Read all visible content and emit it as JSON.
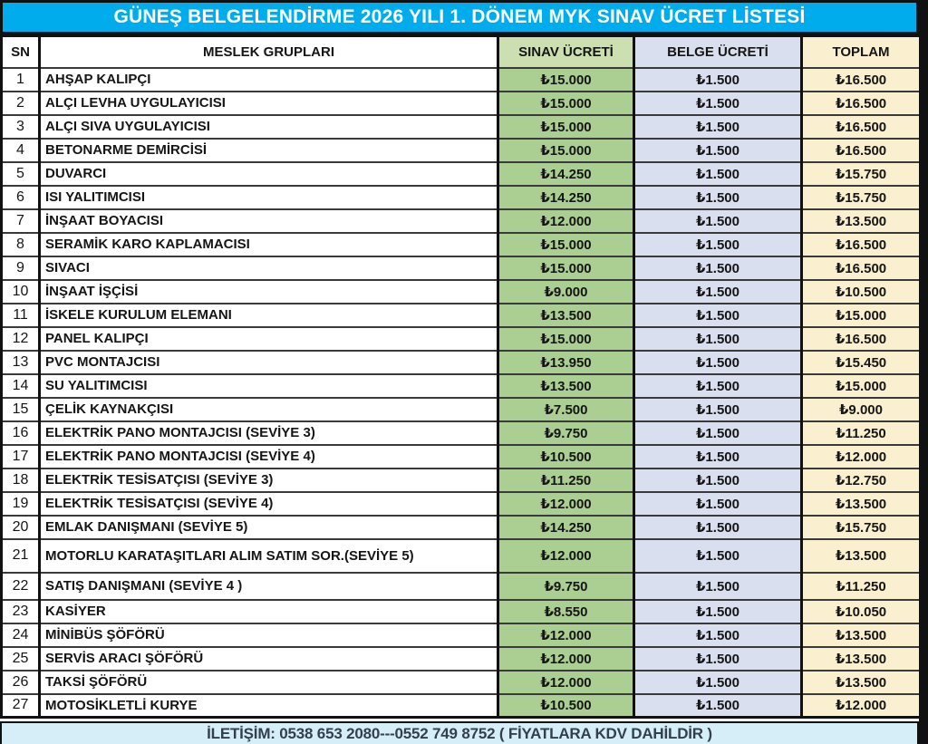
{
  "title": "GÜNEŞ BELGELENDİRME 2026 YILI 1. DÖNEM MYK SINAV ÜCRET LİSTESİ",
  "table": {
    "headers": [
      "SN",
      "MESLEK GRUPLARI",
      "SINAV ÜCRETİ",
      "BELGE ÜCRETİ",
      "TOPLAM"
    ],
    "rows": [
      [
        "1",
        "AHŞAP KALIPÇI",
        "₺15.000",
        "₺1.500",
        "₺16.500"
      ],
      [
        "2",
        "ALÇI LEVHA UYGULAYICISI",
        "₺15.000",
        "₺1.500",
        "₺16.500"
      ],
      [
        "3",
        "ALÇI SIVA UYGULAYICISI",
        "₺15.000",
        "₺1.500",
        "₺16.500"
      ],
      [
        "4",
        "BETONARME DEMİRCİSİ",
        "₺15.000",
        "₺1.500",
        "₺16.500"
      ],
      [
        "5",
        "DUVARCI",
        "₺14.250",
        "₺1.500",
        "₺15.750"
      ],
      [
        "6",
        "ISI YALITIMCISI",
        "₺14.250",
        "₺1.500",
        "₺15.750"
      ],
      [
        "7",
        "İNŞAAT BOYACISI",
        "₺12.000",
        "₺1.500",
        "₺13.500"
      ],
      [
        "8",
        "SERAMİK KARO KAPLAMACISI",
        "₺15.000",
        "₺1.500",
        "₺16.500"
      ],
      [
        "9",
        "SIVACI",
        "₺15.000",
        "₺1.500",
        "₺16.500"
      ],
      [
        "10",
        "İNŞAAT İŞÇİSİ",
        "₺9.000",
        "₺1.500",
        "₺10.500"
      ],
      [
        "11",
        "İSKELE KURULUM ELEMANI",
        "₺13.500",
        "₺1.500",
        "₺15.000"
      ],
      [
        "12",
        "PANEL KALIPÇI",
        "₺15.000",
        "₺1.500",
        "₺16.500"
      ],
      [
        "13",
        "PVC MONTAJCISI",
        "₺13.950",
        "₺1.500",
        "₺15.450"
      ],
      [
        "14",
        "SU YALITIMCISI",
        "₺13.500",
        "₺1.500",
        "₺15.000"
      ],
      [
        "15",
        "ÇELİK KAYNAKÇISI",
        "₺7.500",
        "₺1.500",
        "₺9.000"
      ],
      [
        "16",
        "ELEKTRİK PANO MONTAJCISI (SEVİYE 3)",
        "₺9.750",
        "₺1.500",
        "₺11.250"
      ],
      [
        "17",
        "ELEKTRİK PANO MONTAJCISI (SEVİYE 4)",
        "₺10.500",
        "₺1.500",
        "₺12.000"
      ],
      [
        "18",
        "ELEKTRİK TESİSATÇISI (SEVİYE 3)",
        "₺11.250",
        "₺1.500",
        "₺12.750"
      ],
      [
        "19",
        "ELEKTRİK TESİSATÇISI (SEVİYE 4)",
        "₺12.000",
        "₺1.500",
        "₺13.500"
      ],
      [
        "20",
        "EMLAK DANIŞMANI (SEVİYE 5)",
        "₺14.250",
        "₺1.500",
        "₺15.750"
      ],
      [
        "21",
        "MOTORLU KARATAŞITLARI ALIM SATIM SOR.(SEVİYE 5)",
        "₺12.000",
        "₺1.500",
        "₺13.500"
      ],
      [
        "22",
        "SATIŞ DANIŞMANI (SEVİYE 4 )",
        "₺9.750",
        "₺1.500",
        "₺11.250"
      ],
      [
        "23",
        "KASİYER",
        "₺8.550",
        "₺1.500",
        "₺10.050"
      ],
      [
        "24",
        "MİNİBÜS ŞÖFÖRÜ",
        "₺12.000",
        "₺1.500",
        "₺13.500"
      ],
      [
        "25",
        "SERVİS ARACI ŞÖFÖRÜ",
        "₺12.000",
        "₺1.500",
        "₺13.500"
      ],
      [
        "26",
        "TAKSİ ŞÖFÖRÜ",
        "₺12.000",
        "₺1.500",
        "₺13.500"
      ],
      [
        "27",
        "MOTOSİKLETLİ KURYE",
        "₺10.500",
        "₺1.500",
        "₺12.000"
      ]
    ]
  },
  "footer": "İLETİŞİM: 0538 653 2080---0552 749 8752 ( FİYATLARA KDV DAHİLDİR )",
  "colors": {
    "title_bg": "#00ACEC",
    "exam_header_bg": "#CBDFB0",
    "exam_column_bg": "#ABCE92",
    "certificate_column_bg": "#D9DFEE",
    "total_column_bg": "#FAF0CF",
    "footer_bg": "#D6EEF7",
    "footer_text": "#333F50"
  }
}
